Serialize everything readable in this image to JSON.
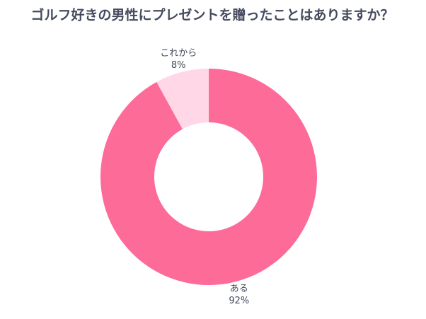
{
  "chart_data": {
    "type": "donut",
    "title": "ゴルフ好きの男性にプレゼントを贈ったことはありますか？",
    "categories": [
      "ある",
      "これから"
    ],
    "values": [
      92,
      8
    ],
    "value_labels": [
      "92%",
      "8%"
    ],
    "colors": [
      "#fd6b99",
      "#ffd7e6"
    ]
  }
}
